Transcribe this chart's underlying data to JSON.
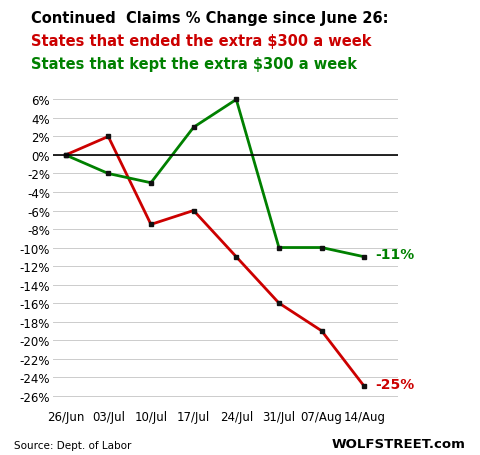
{
  "title_line1": "Continued  Claims % Change since June 26:",
  "title_line2": "States that ended the extra $300 a week",
  "title_line3": "States that kept the extra $300 a week",
  "x_labels": [
    "26/Jun",
    "03/Jul",
    "10/Jul",
    "17/Jul",
    "24/Jul",
    "31/Jul",
    "07/Aug",
    "14/Aug"
  ],
  "red_values": [
    0,
    2,
    -7.5,
    -6,
    -11,
    -16,
    -19,
    -25
  ],
  "green_values": [
    0,
    -2,
    -3,
    3,
    6,
    -10,
    -10,
    -11
  ],
  "red_color": "#cc0000",
  "green_color": "#008000",
  "source_text": "Source: Dept. of Labor",
  "watermark_text": "WOLFSTREET.com",
  "ylim": [
    -27,
    7
  ],
  "yticks": [
    6,
    4,
    2,
    0,
    -2,
    -4,
    -6,
    -8,
    -10,
    -12,
    -14,
    -16,
    -18,
    -20,
    -22,
    -24,
    -26
  ],
  "annotation_green": "-11%",
  "annotation_red": "-25%",
  "title1_fontsize": 10.5,
  "title2_fontsize": 10.5,
  "title3_fontsize": 10.5,
  "tick_fontsize": 8.5,
  "source_fontsize": 7.5,
  "watermark_fontsize": 9.5
}
